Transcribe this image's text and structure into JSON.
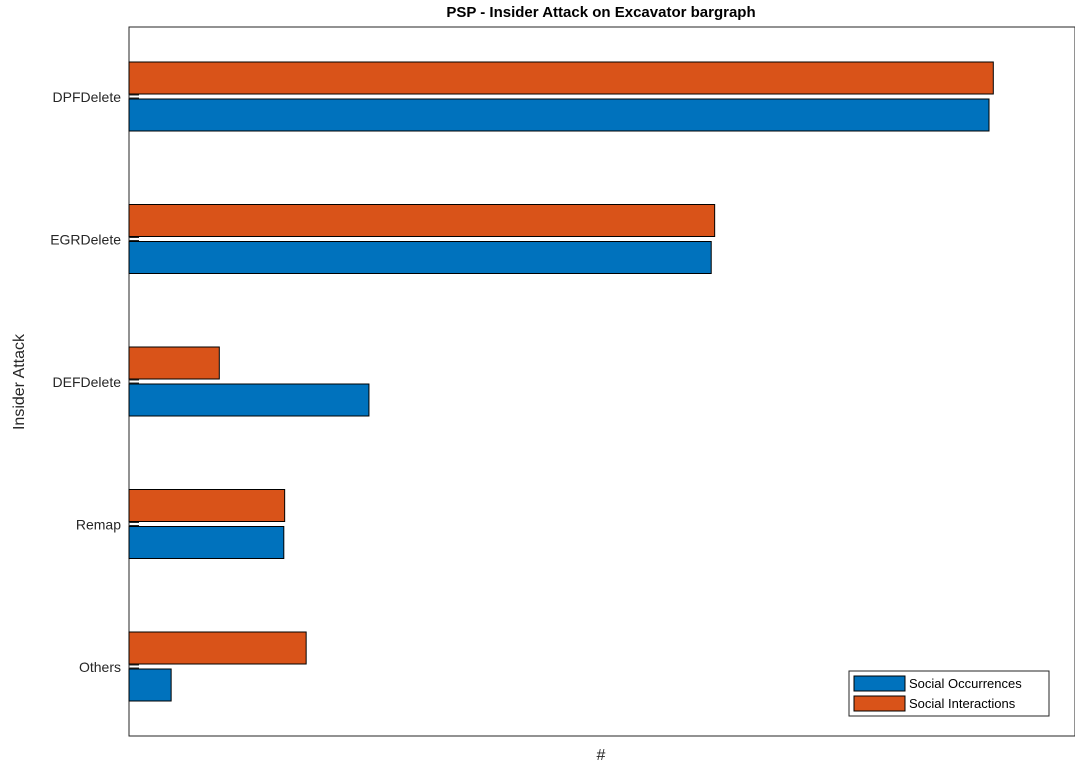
{
  "chart_data": {
    "type": "bar",
    "orientation": "horizontal",
    "title": "PSP - Insider Attack on Excavator bargraph",
    "xlabel": "#",
    "ylabel": "Insider Attack",
    "categories": [
      "DPFDelete",
      "EGRDelete",
      "DEFDelete",
      "Remap",
      "Others"
    ],
    "series": [
      {
        "name": "Social Occurrences",
        "color": "#0072BD",
        "values": [
          100,
          67.7,
          27.9,
          18.0,
          4.9
        ]
      },
      {
        "name": "Social Interactions",
        "color": "#D95319",
        "values": [
          100.5,
          68.1,
          10.5,
          18.1,
          20.6
        ]
      }
    ],
    "xlim": [
      0,
      110
    ],
    "x_ticks_visible": false,
    "grid": false,
    "legend_position": "bottom-right"
  }
}
